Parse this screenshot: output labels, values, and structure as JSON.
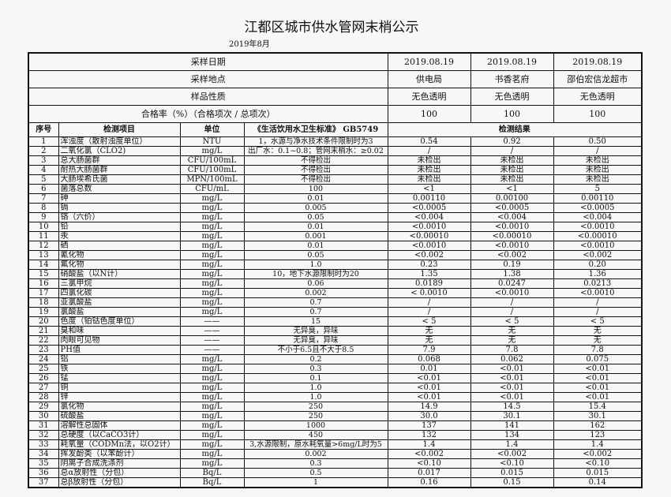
{
  "title": "江都区城市供水管网末梢公示",
  "subtitle": "2019年8月",
  "meta": [
    {
      "label": "采样日期",
      "values": [
        "2019.08.19",
        "2019.08.19",
        "2019.08.19"
      ]
    },
    {
      "label": "采样地点",
      "values": [
        "供电局",
        "书香茗府",
        "邵伯宏信龙超市"
      ]
    },
    {
      "label": "样品性质",
      "values": [
        "无色透明",
        "无色透明",
        "无色透明"
      ]
    },
    {
      "label": "合格率（%）（合格项次 / 总项次）",
      "values": [
        "100",
        "100",
        "100"
      ]
    }
  ],
  "headers": {
    "no": "序号",
    "item": "检测项目",
    "unit": "单位",
    "standard": "《生活饮用水卫生标准》 GB5749",
    "results": "检测结果"
  },
  "rows": [
    {
      "no": "1",
      "item": "浑浊度（散射浊度单位）",
      "unit": "NTU",
      "std": "1，水源与净水技术条件限制时为3",
      "r": [
        "0.54",
        "0.92",
        "0.50"
      ]
    },
    {
      "no": "2",
      "item": "二氧化氯（CLO2)",
      "unit": "mg/L",
      "std": "出厂水：0.1~0.8；管网末梢水：≥0.02",
      "r": [
        "/",
        "/",
        "/"
      ]
    },
    {
      "no": "3",
      "item": "总大肠菌群",
      "unit": "CFU/100mL",
      "std": "不得检出",
      "r": [
        "未检出",
        "未检出",
        "未检出"
      ]
    },
    {
      "no": "4",
      "item": "耐热大肠菌群",
      "unit": "CFU/100mL",
      "std": "不得检出",
      "r": [
        "未检出",
        "未检出",
        "未检出"
      ]
    },
    {
      "no": "5",
      "item": "大肠埃希氏菌",
      "unit": "MPN/100mL",
      "std": "不得检出",
      "r": [
        "未检出",
        "未检出",
        "未检出"
      ]
    },
    {
      "no": "6",
      "item": "菌落总数",
      "unit": "CFU/mL",
      "std": "100",
      "r": [
        "<1",
        "<1",
        "5"
      ]
    },
    {
      "no": "7",
      "item": "砷",
      "unit": "mg/L",
      "std": "0.01",
      "r": [
        "0.00110",
        "0.00100",
        "0.00110"
      ]
    },
    {
      "no": "8",
      "item": "镉",
      "unit": "mg/L",
      "std": "0.005",
      "r": [
        "<0.0005",
        "<0.0005",
        "<0.0005"
      ]
    },
    {
      "no": "9",
      "item": "铬（六价）",
      "unit": "mg/L",
      "std": "0.05",
      "r": [
        "<0.004",
        "<0.004",
        "<0.004"
      ]
    },
    {
      "no": "10",
      "item": "铅",
      "unit": "mg/L",
      "std": "0.01",
      "r": [
        "<0.0010",
        "<0.0010",
        "<0.0010"
      ]
    },
    {
      "no": "11",
      "item": "汞",
      "unit": "mg/L",
      "std": "0.001",
      "r": [
        "<0.00010",
        "<0.00010",
        "<0.00010"
      ]
    },
    {
      "no": "12",
      "item": "硒",
      "unit": "mg/L",
      "std": "0.01",
      "r": [
        "<0.0010",
        "<0.0010",
        "<0.0010"
      ]
    },
    {
      "no": "13",
      "item": "氰化物",
      "unit": "mg/L",
      "std": "0.05",
      "r": [
        "<0.002",
        "<0.002",
        "<0.002"
      ]
    },
    {
      "no": "14",
      "item": "氟化物",
      "unit": "mg/L",
      "std": "1.0",
      "r": [
        "0.23",
        "0.19",
        "0.20"
      ]
    },
    {
      "no": "15",
      "item": "硝酸盐（以N计）",
      "unit": "mg/L",
      "std": "10，地下水源限制时为20",
      "r": [
        "1.35",
        "1.38",
        "1.36"
      ]
    },
    {
      "no": "16",
      "item": "三氯甲烷",
      "unit": "mg/L",
      "std": "0.06",
      "r": [
        "0.0189",
        "0.0247",
        "0.0213"
      ]
    },
    {
      "no": "17",
      "item": "四氯化碳",
      "unit": "mg/L",
      "std": "0.002",
      "r": [
        "< 0.0010",
        "<0.0010",
        "<0.0010"
      ]
    },
    {
      "no": "18",
      "item": "亚氯酸盐",
      "unit": "mg/L",
      "std": "0.7",
      "r": [
        "/",
        "/",
        "/"
      ]
    },
    {
      "no": "19",
      "item": "氯酸盐",
      "unit": "mg/L",
      "std": "0.7",
      "r": [
        "/",
        "/",
        "/"
      ]
    },
    {
      "no": "20",
      "item": "色度（铂钴色度单位）",
      "unit": "——",
      "std": "15",
      "r": [
        "< 5",
        "< 5",
        "< 5"
      ]
    },
    {
      "no": "21",
      "item": "臭和味",
      "unit": "——",
      "std": "无异臭，异味",
      "r": [
        "无",
        "无",
        "无"
      ]
    },
    {
      "no": "22",
      "item": "肉眼可见物",
      "unit": "——",
      "std": "无异臭，异味",
      "r": [
        "无",
        "无",
        "无"
      ]
    },
    {
      "no": "23",
      "item": "PH值",
      "unit": "——",
      "std": "不小于6.5且不大于8.5",
      "r": [
        "7.9",
        "7.8",
        "7.8"
      ]
    },
    {
      "no": "24",
      "item": "铝",
      "unit": "mg/L",
      "std": "0.2",
      "r": [
        "0.068",
        "0.062",
        "0.075"
      ]
    },
    {
      "no": "25",
      "item": "铁",
      "unit": "mg/L",
      "std": "0.3",
      "r": [
        "0.01",
        "<0.01",
        "<0.01"
      ]
    },
    {
      "no": "26",
      "item": "锰",
      "unit": "mg/L",
      "std": "0.1",
      "r": [
        "<0.01",
        "<0.01",
        "<0.01"
      ]
    },
    {
      "no": "27",
      "item": "铜",
      "unit": "mg/L",
      "std": "1.0",
      "r": [
        "<0.01",
        "<0.01",
        "<0.01"
      ]
    },
    {
      "no": "28",
      "item": "锌",
      "unit": "mg/L",
      "std": "1.0",
      "r": [
        "<0.01",
        "<0.01",
        "<0.01"
      ]
    },
    {
      "no": "29",
      "item": "氯化物",
      "unit": "mg/L",
      "std": "250",
      "r": [
        "14.9",
        "14.5",
        "15.4"
      ]
    },
    {
      "no": "30",
      "item": "硫酸盐",
      "unit": "mg/L",
      "std": "250",
      "r": [
        "30.0",
        "30.1",
        "30.1"
      ]
    },
    {
      "no": "31",
      "item": "溶解性总固体",
      "unit": "mg/L",
      "std": "1000",
      "r": [
        "137",
        "141",
        "162"
      ]
    },
    {
      "no": "32",
      "item": "总硬度（以CaCO3计）",
      "unit": "mg/L",
      "std": "450",
      "r": [
        "132",
        "134",
        "123"
      ]
    },
    {
      "no": "33",
      "item": "耗氧量（CODMn法，以O2计）",
      "unit": "mg/L",
      "std": "3,水源限制，原水耗氧量>6mg/L时为5",
      "r": [
        "1.4",
        "1.4",
        "1.4"
      ]
    },
    {
      "no": "34",
      "item": "挥发酚类（以苯酚计）",
      "unit": "mg/L",
      "std": "0.002",
      "r": [
        "<0.002",
        "<0.002",
        "<0.002"
      ]
    },
    {
      "no": "35",
      "item": "阴离子合成洗涤剂",
      "unit": "mg/L",
      "std": "0.3",
      "r": [
        "<0.10",
        "<0.10",
        "<0.10"
      ]
    },
    {
      "no": "36",
      "item": "总α放射性（分包）",
      "unit": "Bq/L",
      "std": "0.5",
      "r": [
        "0.017",
        "0.015",
        "0.015"
      ]
    },
    {
      "no": "37",
      "item": "总β放射性（分包）",
      "unit": "Bq/L",
      "std": "1",
      "r": [
        "0.16",
        "0.15",
        "0.14"
      ]
    }
  ]
}
